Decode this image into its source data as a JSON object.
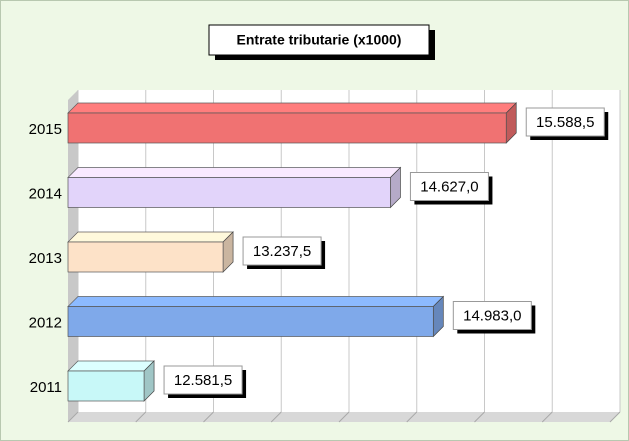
{
  "chart_data": {
    "type": "bar",
    "orientation": "horizontal",
    "title": "Entrate tributarie (x1000)",
    "categories": [
      "2015",
      "2014",
      "2013",
      "2012",
      "2011"
    ],
    "values": [
      15588.5,
      14627.0,
      13237.5,
      14983.0,
      12581.5
    ],
    "value_labels": [
      "15.588,5",
      "14.627,0",
      "13.237,5",
      "14.983,0",
      "12.581,5"
    ],
    "colors": [
      "#f07272",
      "#e2d4fa",
      "#fde2c8",
      "#7fa9ea",
      "#c8f8f8"
    ],
    "xlim": [
      11950,
      16450
    ],
    "xticks": [
      11950,
      12512.5,
      13075,
      13637.5,
      14200,
      14762.5,
      15325,
      15887.5,
      16450
    ],
    "grid": true
  }
}
